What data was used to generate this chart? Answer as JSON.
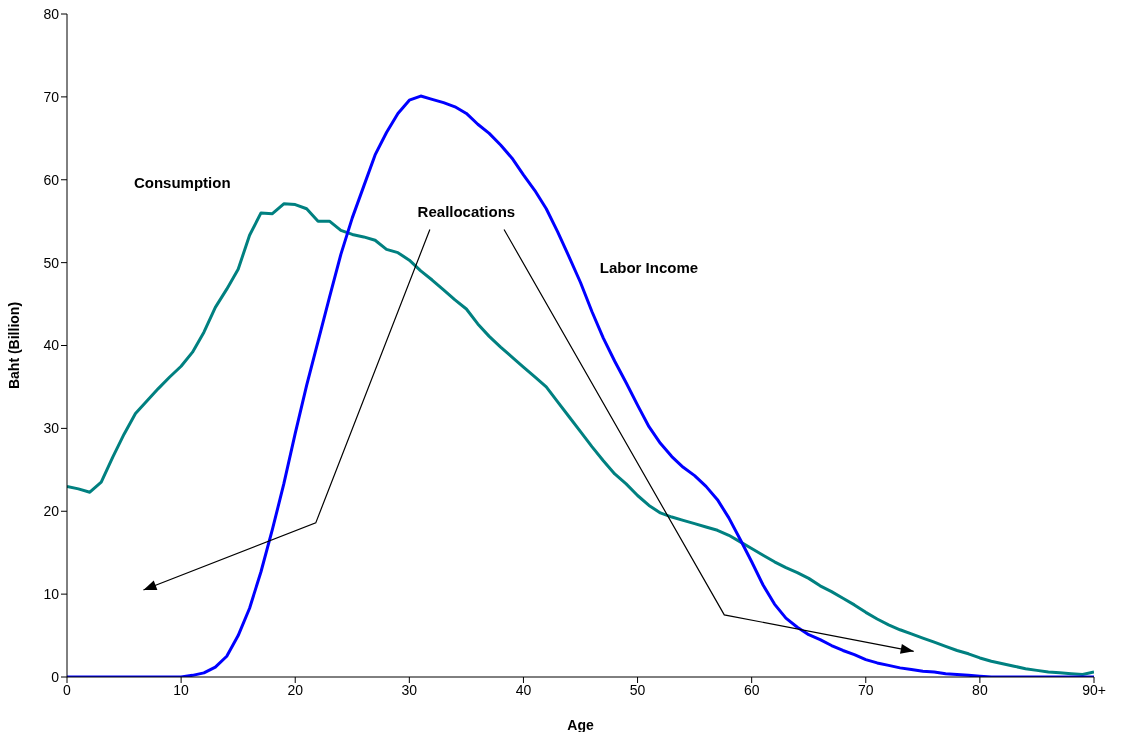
{
  "chart_data": {
    "type": "line",
    "xlabel": "Age",
    "ylabel": "Baht (Billion)",
    "x": [
      0,
      1,
      2,
      3,
      4,
      5,
      6,
      7,
      8,
      9,
      10,
      11,
      12,
      13,
      14,
      15,
      16,
      17,
      18,
      19,
      20,
      21,
      22,
      23,
      24,
      25,
      26,
      27,
      28,
      29,
      30,
      31,
      32,
      33,
      34,
      35,
      36,
      37,
      38,
      39,
      40,
      41,
      42,
      43,
      44,
      45,
      46,
      47,
      48,
      49,
      50,
      51,
      52,
      53,
      54,
      55,
      56,
      57,
      58,
      59,
      60,
      61,
      62,
      63,
      64,
      65,
      66,
      67,
      68,
      69,
      70,
      71,
      72,
      73,
      74,
      75,
      76,
      77,
      78,
      79,
      80,
      81,
      82,
      83,
      84,
      85,
      86,
      87,
      88,
      89,
      90
    ],
    "series": [
      {
        "name": "Consumption",
        "color": "#008080",
        "values": [
          23.0,
          22.7,
          22.3,
          23.5,
          26.5,
          29.3,
          31.8,
          33.3,
          34.8,
          36.2,
          37.5,
          39.2,
          41.6,
          44.6,
          46.8,
          49.2,
          53.3,
          56.0,
          55.9,
          57.1,
          57.0,
          56.5,
          55.0,
          55.0,
          53.9,
          53.4,
          53.1,
          52.7,
          51.6,
          51.2,
          50.3,
          49.0,
          47.9,
          46.7,
          45.5,
          44.4,
          42.6,
          41.1,
          39.8,
          38.6,
          37.4,
          36.2,
          35.0,
          33.2,
          31.4,
          29.6,
          27.8,
          26.1,
          24.5,
          23.3,
          21.9,
          20.7,
          19.8,
          19.3,
          18.9,
          18.5,
          18.1,
          17.7,
          17.1,
          16.3,
          15.5,
          14.7,
          13.9,
          13.2,
          12.6,
          11.9,
          11.0,
          10.3,
          9.5,
          8.7,
          7.8,
          7.0,
          6.3,
          5.7,
          5.2,
          4.7,
          4.2,
          3.7,
          3.2,
          2.8,
          2.3,
          1.9,
          1.6,
          1.3,
          1.0,
          0.8,
          0.6,
          0.5,
          0.4,
          0.3,
          0.6
        ]
      },
      {
        "name": "Labor Income",
        "color": "#0000ff",
        "values": [
          0,
          0,
          0,
          0,
          0,
          0,
          0,
          0,
          0,
          0,
          0,
          0.2,
          0.5,
          1.2,
          2.5,
          5.0,
          8.3,
          12.7,
          17.8,
          23.3,
          29.4,
          35.2,
          40.5,
          45.8,
          51.0,
          55.4,
          59.2,
          63.0,
          65.7,
          68.0,
          69.6,
          70.1,
          69.7,
          69.3,
          68.8,
          68.0,
          66.7,
          65.6,
          64.2,
          62.6,
          60.6,
          58.7,
          56.5,
          53.7,
          50.7,
          47.6,
          44.1,
          40.9,
          38.1,
          35.5,
          32.8,
          30.2,
          28.2,
          26.6,
          25.3,
          24.3,
          23.0,
          21.4,
          19.2,
          16.6,
          13.9,
          11.1,
          8.8,
          7.1,
          6.0,
          5.1,
          4.5,
          3.8,
          3.2,
          2.7,
          2.1,
          1.7,
          1.4,
          1.1,
          0.9,
          0.7,
          0.6,
          0.4,
          0.3,
          0.2,
          0.1,
          0,
          0,
          0,
          0,
          0,
          0,
          0,
          0,
          0,
          0
        ]
      }
    ],
    "xlim": [
      0,
      90
    ],
    "ylim": [
      0,
      80
    ],
    "xticks": [
      0,
      10,
      20,
      30,
      40,
      50,
      60,
      70,
      80,
      {
        "value": 90,
        "label": "90+"
      }
    ],
    "yticks": [
      0,
      10,
      20,
      30,
      40,
      50,
      60,
      70,
      80
    ],
    "annotations": [
      "Reallocations"
    ]
  }
}
